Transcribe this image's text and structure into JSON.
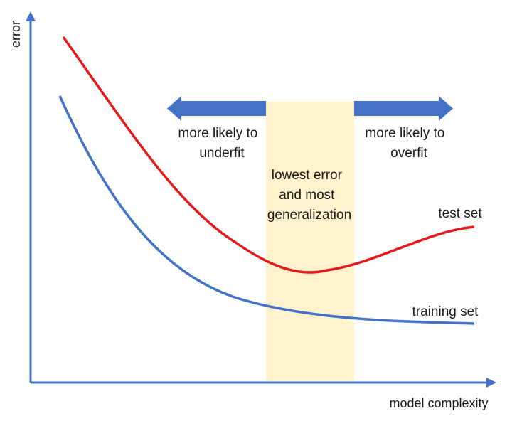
{
  "axes": {
    "x_label": "model complexity",
    "y_label": "error",
    "axis_color": "#4472c4"
  },
  "region": {
    "label_lines": [
      "lowest error",
      "and most",
      "generalization"
    ],
    "color": "#fff2cc"
  },
  "arrows": {
    "left": {
      "lines": [
        "more likely to",
        "underfit"
      ]
    },
    "right": {
      "lines": [
        "more likely to",
        "overfit"
      ]
    },
    "color": "#4472c4"
  },
  "curves": {
    "test": {
      "name": "test set",
      "color": "#e31a1c"
    },
    "training": {
      "name": "training set",
      "color": "#4472c4"
    }
  }
}
